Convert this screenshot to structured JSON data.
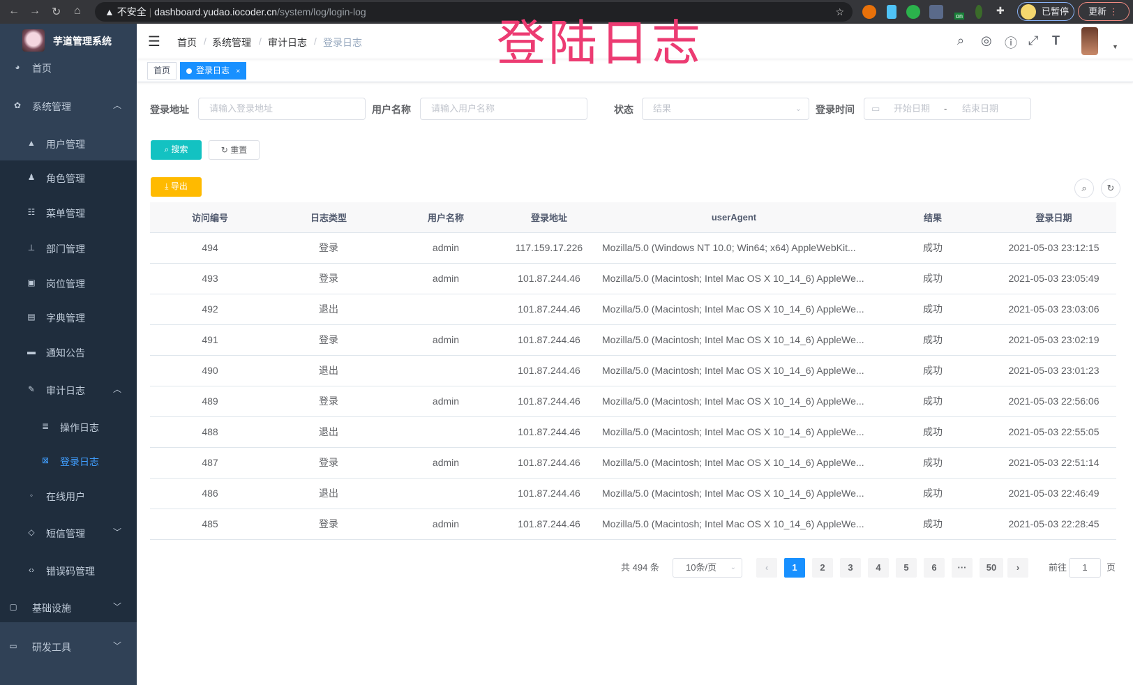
{
  "browser": {
    "insecure": "不安全",
    "url_host": "dashboard.yudao.iocoder.cn",
    "url_path": "/system/log/login-log",
    "profile": "已暂停",
    "update": "更新",
    "ext_badge": "on"
  },
  "overlay_title": "登陆日志",
  "sidebar": {
    "title": "芋道管理系统",
    "items": [
      {
        "label": "首页",
        "icon": "dashboard-icon"
      },
      {
        "label": "系统管理",
        "icon": "gear-icon"
      },
      {
        "label": "用户管理",
        "icon": "user-icon"
      },
      {
        "label": "角色管理",
        "icon": "role-icon"
      },
      {
        "label": "菜单管理",
        "icon": "menu-icon"
      },
      {
        "label": "部门管理",
        "icon": "tree-icon"
      },
      {
        "label": "岗位管理",
        "icon": "post-icon"
      },
      {
        "label": "字典管理",
        "icon": "dict-icon"
      },
      {
        "label": "通知公告",
        "icon": "message-icon"
      },
      {
        "label": "审计日志",
        "icon": "log-icon"
      },
      {
        "label": "操作日志",
        "icon": "form-icon"
      },
      {
        "label": "登录日志",
        "icon": "logininfor-icon"
      },
      {
        "label": "在线用户",
        "icon": "online-icon"
      },
      {
        "label": "短信管理",
        "icon": "validcode-icon"
      },
      {
        "label": "错误码管理",
        "icon": "code-icon"
      },
      {
        "label": "基础设施",
        "icon": "monitor-icon"
      },
      {
        "label": "研发工具",
        "icon": "tool-icon"
      }
    ]
  },
  "breadcrumb": [
    "首页",
    "系统管理",
    "审计日志",
    "登录日志"
  ],
  "tags": [
    "首页",
    "登录日志"
  ],
  "form": {
    "ip_label": "登录地址",
    "ip_placeholder": "请输入登录地址",
    "user_label": "用户名称",
    "user_placeholder": "请输入用户名称",
    "status_label": "状态",
    "status_placeholder": "结果",
    "time_label": "登录时间",
    "start_placeholder": "开始日期",
    "end_placeholder": "结束日期",
    "range_sep": "-",
    "search": "搜索",
    "reset": "重置",
    "export": "导出"
  },
  "table": {
    "headers": [
      "访问编号",
      "日志类型",
      "用户名称",
      "登录地址",
      "userAgent",
      "结果",
      "登录日期"
    ],
    "rows": [
      [
        "494",
        "登录",
        "admin",
        "117.159.17.226",
        "Mozilla/5.0 (Windows NT 10.0; Win64; x64) AppleWebKit...",
        "成功",
        "2021-05-03 23:12:15"
      ],
      [
        "493",
        "登录",
        "admin",
        "101.87.244.46",
        "Mozilla/5.0 (Macintosh; Intel Mac OS X 10_14_6) AppleWe...",
        "成功",
        "2021-05-03 23:05:49"
      ],
      [
        "492",
        "退出",
        "",
        "101.87.244.46",
        "Mozilla/5.0 (Macintosh; Intel Mac OS X 10_14_6) AppleWe...",
        "成功",
        "2021-05-03 23:03:06"
      ],
      [
        "491",
        "登录",
        "admin",
        "101.87.244.46",
        "Mozilla/5.0 (Macintosh; Intel Mac OS X 10_14_6) AppleWe...",
        "成功",
        "2021-05-03 23:02:19"
      ],
      [
        "490",
        "退出",
        "",
        "101.87.244.46",
        "Mozilla/5.0 (Macintosh; Intel Mac OS X 10_14_6) AppleWe...",
        "成功",
        "2021-05-03 23:01:23"
      ],
      [
        "489",
        "登录",
        "admin",
        "101.87.244.46",
        "Mozilla/5.0 (Macintosh; Intel Mac OS X 10_14_6) AppleWe...",
        "成功",
        "2021-05-03 22:56:06"
      ],
      [
        "488",
        "退出",
        "",
        "101.87.244.46",
        "Mozilla/5.0 (Macintosh; Intel Mac OS X 10_14_6) AppleWe...",
        "成功",
        "2021-05-03 22:55:05"
      ],
      [
        "487",
        "登录",
        "admin",
        "101.87.244.46",
        "Mozilla/5.0 (Macintosh; Intel Mac OS X 10_14_6) AppleWe...",
        "成功",
        "2021-05-03 22:51:14"
      ],
      [
        "486",
        "退出",
        "",
        "101.87.244.46",
        "Mozilla/5.0 (Macintosh; Intel Mac OS X 10_14_6) AppleWe...",
        "成功",
        "2021-05-03 22:46:49"
      ],
      [
        "485",
        "登录",
        "admin",
        "101.87.244.46",
        "Mozilla/5.0 (Macintosh; Intel Mac OS X 10_14_6) AppleWe...",
        "成功",
        "2021-05-03 22:28:45"
      ]
    ]
  },
  "pagination": {
    "total": "共 494 条",
    "page_size": "10条/页",
    "pages": [
      "1",
      "2",
      "3",
      "4",
      "5",
      "6",
      "···",
      "50"
    ],
    "current": "1",
    "goto_label": "前往",
    "goto_value": "1",
    "goto_suffix": "页"
  },
  "colors": {
    "sidebar": "#304156",
    "submenu": "#1f2d3d",
    "primary": "#1890ff",
    "search": "#13c2c2",
    "export": "#ffba00",
    "overlay": "#ec3b72"
  }
}
